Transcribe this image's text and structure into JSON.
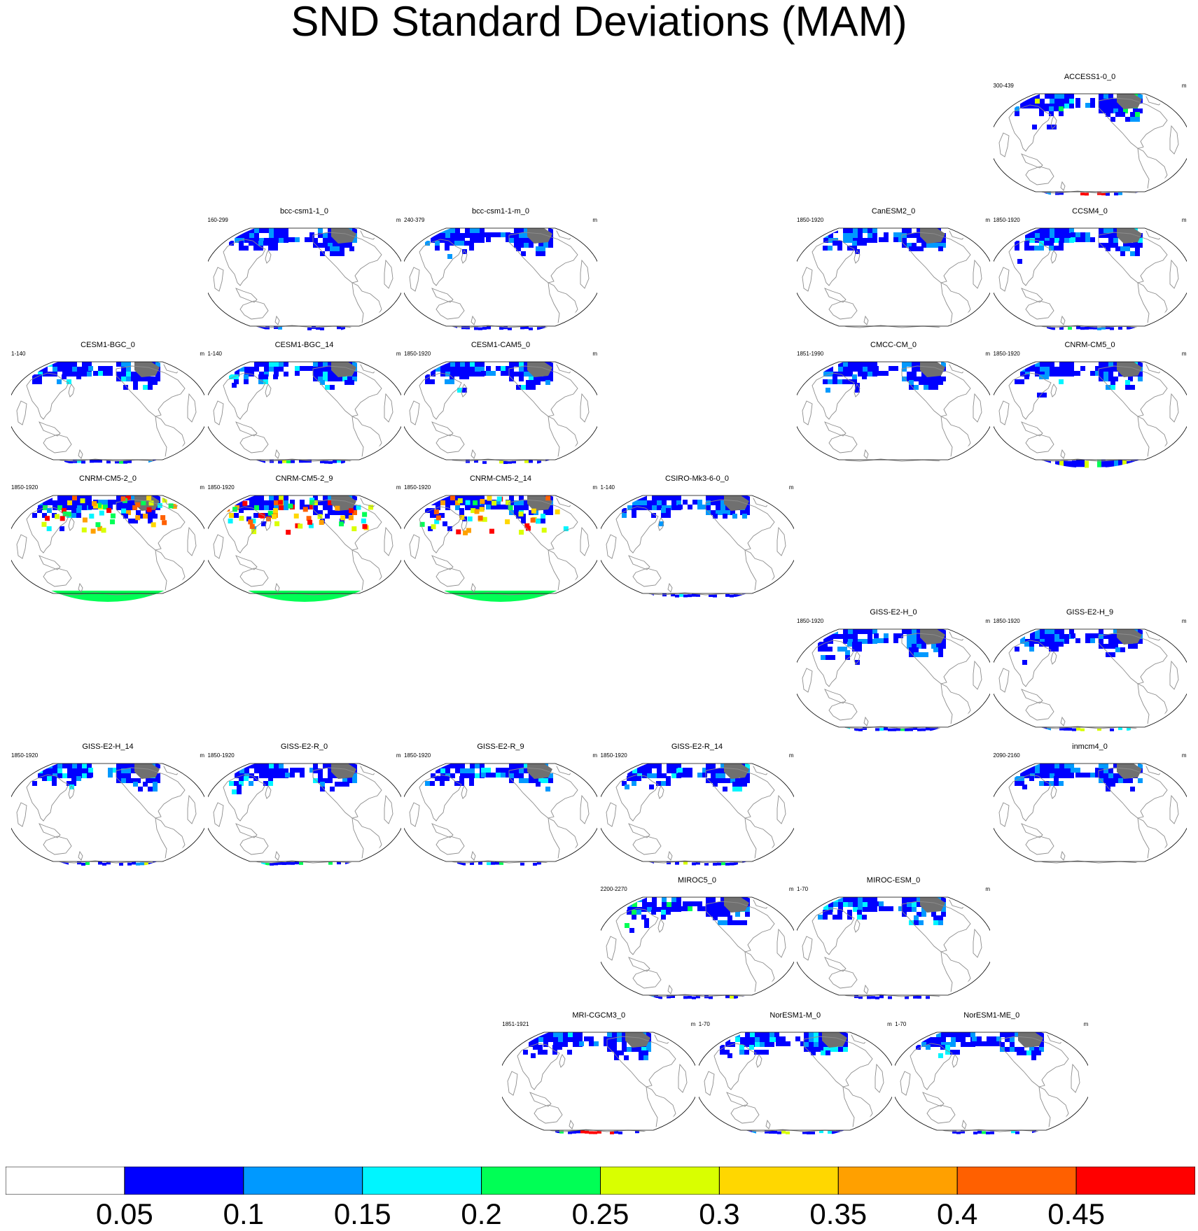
{
  "title": "SND Standard Deviations (MAM)",
  "colors": {
    "colorbar": [
      "#ffffff",
      "#0000ff",
      "#0099ff",
      "#00f5ff",
      "#00ff55",
      "#d9ff00",
      "#ffd700",
      "#ffa000",
      "#ff6000",
      "#ff0000"
    ],
    "coast": "#8c8c8c",
    "outline": "#000000",
    "snow_cap": "#707070"
  },
  "colorbar": {
    "labels": [
      "0.05",
      "0.1",
      "0.15",
      "0.2",
      "0.25",
      "0.3",
      "0.35",
      "0.4",
      "0.45"
    ]
  },
  "panels": [
    {
      "name": "ACCESS1-0_0",
      "range": "300-439",
      "unit": "m",
      "row": 0,
      "col": 5,
      "south": "red",
      "level": 5
    },
    {
      "name": "bcc-csm1-1_0",
      "range": "160-299",
      "unit": "m",
      "row": 1,
      "col": 1,
      "south": "blue",
      "level": 2
    },
    {
      "name": "bcc-csm1-1-m_0",
      "range": "240-379",
      "unit": "m",
      "row": 1,
      "col": 2,
      "south": "blue",
      "level": 2
    },
    {
      "name": "CanESM2_0",
      "range": "1850-1920",
      "unit": "m",
      "row": 1,
      "col": 4,
      "south": "none",
      "level": 2
    },
    {
      "name": "CCSM4_0",
      "range": "1850-1920",
      "unit": "m",
      "row": 1,
      "col": 5,
      "south": "blue",
      "level": 3
    },
    {
      "name": "CESM1-BGC_0",
      "range": "1-140",
      "unit": "m",
      "row": 2,
      "col": 0,
      "south": "blue",
      "level": 3
    },
    {
      "name": "CESM1-BGC_14",
      "range": "1-140",
      "unit": "m",
      "row": 2,
      "col": 1,
      "south": "blue",
      "level": 3
    },
    {
      "name": "CESM1-CAM5_0",
      "range": "1850-1920",
      "unit": "m",
      "row": 2,
      "col": 2,
      "south": "blue",
      "level": 3
    },
    {
      "name": "CMCC-CM_0",
      "range": "1851-1990",
      "unit": "m",
      "row": 2,
      "col": 4,
      "south": "none",
      "level": 1
    },
    {
      "name": "CNRM-CM5_0",
      "range": "1850-1920",
      "unit": "m",
      "row": 2,
      "col": 5,
      "south": "full-blue",
      "level": 3
    },
    {
      "name": "CNRM-CM5-2_0",
      "range": "1850-1920",
      "unit": "m",
      "row": 3,
      "col": 0,
      "south": "green",
      "level": 9
    },
    {
      "name": "CNRM-CM5-2_9",
      "range": "1850-1920",
      "unit": "m",
      "row": 3,
      "col": 1,
      "south": "green",
      "level": 9
    },
    {
      "name": "CNRM-CM5-2_14",
      "range": "1850-1920",
      "unit": "m",
      "row": 3,
      "col": 2,
      "south": "green",
      "level": 9
    },
    {
      "name": "CSIRO-Mk3-6-0_0",
      "range": "1-140",
      "unit": "m",
      "row": 3,
      "col": 3,
      "south": "blue",
      "level": 1
    },
    {
      "name": "GISS-E2-H_0",
      "range": "1850-1920",
      "unit": "m",
      "row": 4,
      "col": 4,
      "south": "blue",
      "level": 2
    },
    {
      "name": "GISS-E2-H_9",
      "range": "1850-1920",
      "unit": "m",
      "row": 4,
      "col": 5,
      "south": "blue",
      "level": 2
    },
    {
      "name": "GISS-E2-H_14",
      "range": "1850-1920",
      "unit": "m",
      "row": 5,
      "col": 0,
      "south": "blue",
      "level": 3
    },
    {
      "name": "GISS-E2-R_0",
      "range": "1850-1920",
      "unit": "m",
      "row": 5,
      "col": 1,
      "south": "blue",
      "level": 3
    },
    {
      "name": "GISS-E2-R_9",
      "range": "1850-1920",
      "unit": "m",
      "row": 5,
      "col": 2,
      "south": "blue",
      "level": 3
    },
    {
      "name": "GISS-E2-R_14",
      "range": "1850-1920",
      "unit": "m",
      "row": 5,
      "col": 3,
      "south": "blue",
      "level": 3
    },
    {
      "name": "inmcm4_0",
      "range": "2090-2160",
      "unit": "m",
      "row": 5,
      "col": 5,
      "south": "none",
      "level": 1
    },
    {
      "name": "MIROC5_0",
      "range": "2200-2270",
      "unit": "m",
      "row": 6,
      "col": 3,
      "south": "blue",
      "level": 4
    },
    {
      "name": "MIROC-ESM_0",
      "range": "1-70",
      "unit": "m",
      "row": 6,
      "col": 4,
      "south": "blue",
      "level": 3
    },
    {
      "name": "MRI-CGCM3_0",
      "range": "1851-1921",
      "unit": "m",
      "row": 7,
      "col": 2.5,
      "south": "red",
      "level": 3
    },
    {
      "name": "NorESM1-M_0",
      "range": "1-70",
      "unit": "m",
      "row": 7,
      "col": 3.5,
      "south": "blue",
      "level": 3
    },
    {
      "name": "NorESM1-ME_0",
      "range": "1-70",
      "unit": "m",
      "row": 7,
      "col": 4.5,
      "south": "blue",
      "level": 3
    }
  ]
}
